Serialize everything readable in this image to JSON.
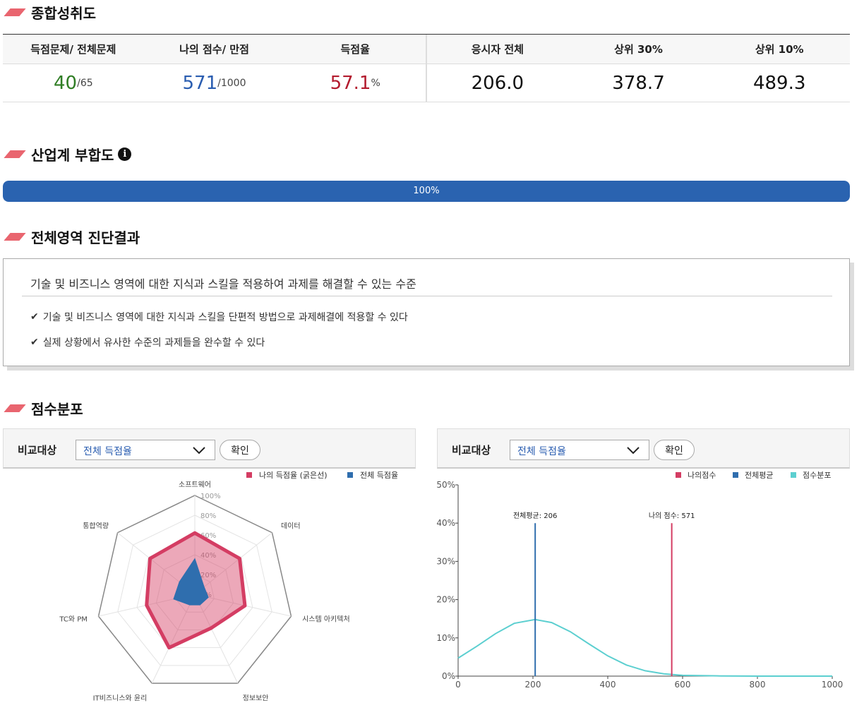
{
  "sections": {
    "overall": "종합성취도",
    "industry": "산업계 부합도",
    "diagnosis": "전체영역 진단결과",
    "distribution": "점수분포"
  },
  "score_table": {
    "headers": [
      "득점문제/ 전체문제",
      "나의 점수/ 만점",
      "득점율",
      "응시자 전체",
      "상위 30%",
      "상위 10%"
    ],
    "solved": "40",
    "total_questions": "/65",
    "my_score": "571",
    "max_score": "/1000",
    "rate": "57.1",
    "rate_unit": "%",
    "all_avg": "206.0",
    "top30": "378.7",
    "top10": "489.3"
  },
  "industry_fit": {
    "percent_label": "100%",
    "value": 100
  },
  "diagnosis": {
    "level": "기술 및 비즈니스 영역에 대한 지식과 스킬을 적용하여 과제를 해결할 수 있는 수준",
    "items": [
      "기술 및 비즈니스 영역에 대한 지식과 스킬을 단편적 방법으로 과제해결에 적용할 수 있다",
      "실제 상황에서 유사한 수준의 과제들을 완수할 수 있다"
    ]
  },
  "compare": {
    "label": "비교대상",
    "selected": "전체 득점율",
    "confirm": "확인"
  },
  "colors": {
    "accent_red": "#d43d63",
    "accent_blue": "#2f6eae",
    "teal": "#5ccfd0",
    "bar_blue": "#2a63b0"
  },
  "chart_data": [
    {
      "type": "radar",
      "categories": [
        "소프트웨어",
        "데이터",
        "시스템 아키텍처",
        "정보보안",
        "IT비즈니스와 윤리",
        "TC와 PM",
        "통합역량"
      ],
      "series": [
        {
          "name": "나의 득점율 (굵은선)",
          "values": [
            62,
            58,
            52,
            38,
            60,
            50,
            58
          ]
        },
        {
          "name": "전체 득점율",
          "values": [
            36,
            12,
            14,
            12,
            12,
            22,
            20
          ]
        }
      ],
      "ticks": [
        "0%",
        "20%",
        "40%",
        "60%",
        "80%",
        "100%"
      ],
      "ylim": [
        0,
        100
      ]
    },
    {
      "type": "line",
      "legend": [
        "나의점수",
        "전체평균",
        "점수분포"
      ],
      "xlim": [
        0,
        1000
      ],
      "ylim": [
        0,
        50
      ],
      "x_ticks": [
        0,
        200,
        400,
        600,
        800,
        1000
      ],
      "y_ticks": [
        "0%",
        "10%",
        "20%",
        "30%",
        "40%",
        "50%"
      ],
      "markers": [
        {
          "label": "전체평균: 206",
          "x": 206
        },
        {
          "label": "나의 점수: 571",
          "x": 571
        }
      ],
      "series": [
        {
          "name": "점수분포",
          "x": [
            0,
            50,
            100,
            150,
            206,
            250,
            300,
            350,
            400,
            450,
            500,
            550,
            600,
            700,
            800,
            900,
            1000
          ],
          "y": [
            4.7,
            7.8,
            11.1,
            13.8,
            14.8,
            14.0,
            11.6,
            8.4,
            5.3,
            2.9,
            1.4,
            0.6,
            0.2,
            0.05,
            0.0,
            0.0,
            0.0
          ]
        }
      ]
    }
  ]
}
